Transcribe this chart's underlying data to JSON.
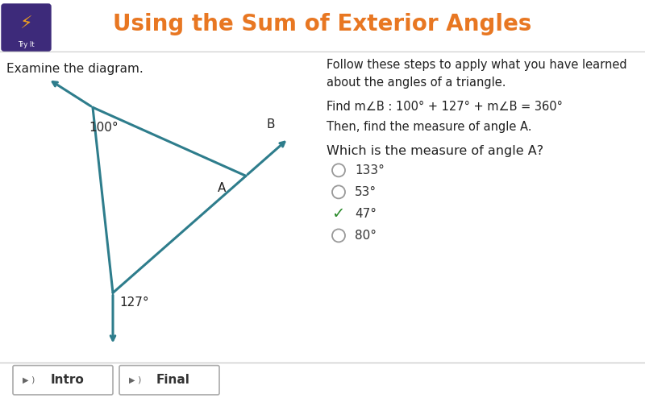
{
  "title": "Using the Sum of Exterior Angles",
  "title_color": "#E87722",
  "header_bg": "#f2f2f2",
  "body_bg": "#ffffff",
  "left_label": "Examine the diagram.",
  "triangle_color": "#2E7D8C",
  "angle_top_label": "100°",
  "angle_bottom_label": "127°",
  "label_A": "A",
  "label_B": "B",
  "right_text_line1": "Follow these steps to apply what you have learned",
  "right_text_line2": "about the angles of a triangle.",
  "right_text_line3": "Find m∠B : 100° + 127° + m∠B = 360°",
  "right_text_line4": "Then, find the measure of angle A.",
  "right_text_line5": "Which is the measure of angle A?",
  "choices": [
    "133°",
    "53°",
    "47°",
    "80°"
  ],
  "correct_index": 2,
  "footer_bg": "#e8e8e8",
  "btn1_label": "Intro",
  "btn2_label": "Final",
  "icon_bg": "#3d2a7a",
  "icon_text": "⚡",
  "icon_sub": "Try It"
}
